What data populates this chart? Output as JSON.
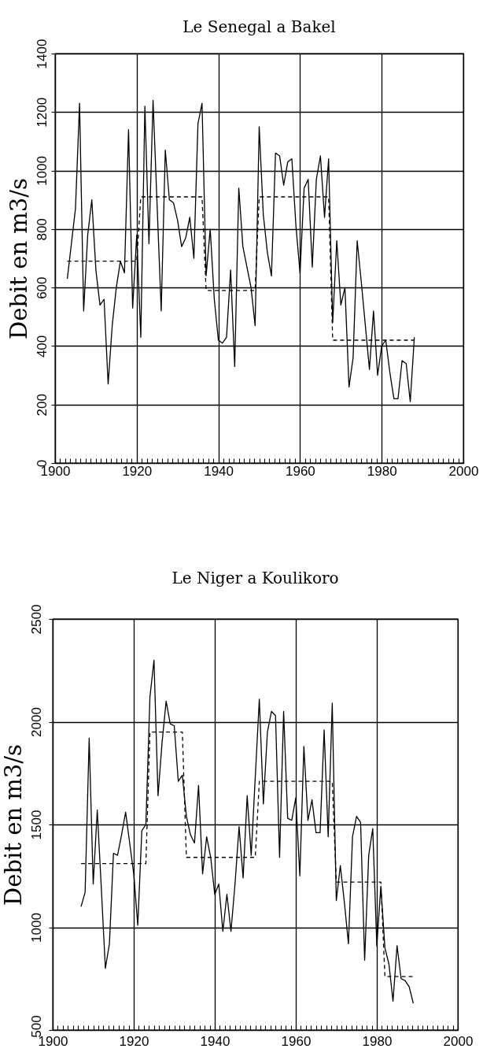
{
  "chart_data": [
    {
      "type": "line",
      "title": "Le Senegal a Bakel",
      "ylabel": "Debit en m3/s",
      "x": [
        1903,
        1904,
        1905,
        1906,
        1907,
        1908,
        1909,
        1910,
        1911,
        1912,
        1913,
        1914,
        1915,
        1916,
        1917,
        1918,
        1919,
        1920,
        1921,
        1922,
        1923,
        1924,
        1925,
        1926,
        1927,
        1928,
        1929,
        1930,
        1931,
        1932,
        1933,
        1934,
        1935,
        1936,
        1937,
        1938,
        1939,
        1940,
        1941,
        1942,
        1943,
        1944,
        1945,
        1946,
        1947,
        1948,
        1949,
        1950,
        1951,
        1952,
        1953,
        1954,
        1955,
        1956,
        1957,
        1958,
        1959,
        1960,
        1961,
        1962,
        1963,
        1964,
        1965,
        1966,
        1967,
        1968,
        1969,
        1970,
        1971,
        1972,
        1973,
        1974,
        1975,
        1976,
        1977,
        1978,
        1979,
        1980,
        1981,
        1982,
        1983,
        1984,
        1985,
        1986,
        1987,
        1988
      ],
      "series": [
        {
          "color": "#000000",
          "values": [
            630,
            750,
            870,
            1230,
            520,
            780,
            900,
            660,
            540,
            560,
            270,
            470,
            600,
            690,
            650,
            1140,
            530,
            780,
            430,
            1220,
            750,
            1240,
            880,
            520,
            1070,
            900,
            890,
            830,
            740,
            770,
            840,
            700,
            1160,
            1230,
            640,
            800,
            560,
            420,
            410,
            430,
            660,
            330,
            940,
            740,
            670,
            600,
            470,
            1150,
            850,
            720,
            640,
            1060,
            1050,
            950,
            1030,
            1040,
            810,
            650,
            940,
            970,
            670,
            970,
            1050,
            840,
            1040,
            480,
            760,
            540,
            600,
            260,
            360,
            760,
            620,
            470,
            320,
            520,
            300,
            400,
            420,
            310,
            220,
            220,
            350,
            340,
            210,
            430
          ]
        },
        {
          "color": "#000000",
          "line_style": "dashed",
          "x": [
            1903,
            1920,
            1921,
            1936,
            1937,
            1949,
            1950,
            1967,
            1968,
            1988
          ],
          "values": [
            690,
            690,
            910,
            910,
            590,
            590,
            910,
            910,
            420,
            420
          ]
        }
      ],
      "xlim": [
        1900,
        2000
      ],
      "ylim": [
        0,
        1400
      ],
      "xticks": [
        1900,
        {
          "value": 1901.25,
          "label": null
        },
        {
          "value": 1902.5,
          "label": null
        },
        {
          "value": 1903.75,
          "label": null
        },
        {
          "value": 1905,
          "label": null
        },
        {
          "value": 1906.25,
          "label": null
        },
        {
          "value": 1907.5,
          "label": null
        },
        {
          "value": 1908.75,
          "label": null
        },
        {
          "value": 1910,
          "label": null
        },
        {
          "value": 1911.25,
          "label": null
        },
        {
          "value": 1912.5,
          "label": null
        },
        {
          "value": 1913.75,
          "label": null
        },
        {
          "value": 1915,
          "label": null
        },
        {
          "value": 1916.25,
          "label": null
        },
        {
          "value": 1917.5,
          "label": null
        },
        {
          "value": 1918.75,
          "label": null
        },
        1920,
        {
          "value": 1921.25,
          "label": null
        },
        {
          "value": 1922.5,
          "label": null
        },
        {
          "value": 1923.75,
          "label": null
        },
        {
          "value": 1925,
          "label": null
        },
        {
          "value": 1926.25,
          "label": null
        },
        {
          "value": 1927.5,
          "label": null
        },
        {
          "value": 1928.75,
          "label": null
        },
        {
          "value": 1930,
          "label": null
        },
        {
          "value": 1931.25,
          "label": null
        },
        {
          "value": 1932.5,
          "label": null
        },
        {
          "value": 1933.75,
          "label": null
        },
        {
          "value": 1935,
          "label": null
        },
        {
          "value": 1936.25,
          "label": null
        },
        {
          "value": 1937.5,
          "label": null
        },
        {
          "value": 1938.75,
          "label": null
        },
        1940,
        {
          "value": 1941.25,
          "label": null
        },
        {
          "value": 1942.5,
          "label": null
        },
        {
          "value": 1943.75,
          "label": null
        },
        {
          "value": 1945,
          "label": null
        },
        {
          "value": 1946.25,
          "label": null
        },
        {
          "value": 1947.5,
          "label": null
        },
        {
          "value": 1948.75,
          "label": null
        },
        {
          "value": 1950,
          "label": null
        },
        {
          "value": 1951.25,
          "label": null
        },
        {
          "value": 1952.5,
          "label": null
        },
        {
          "value": 1953.75,
          "label": null
        },
        {
          "value": 1955,
          "label": null
        },
        {
          "value": 1956.25,
          "label": null
        },
        {
          "value": 1957.5,
          "label": null
        },
        {
          "value": 1958.75,
          "label": null
        },
        1960,
        {
          "value": 1961.25,
          "label": null
        },
        {
          "value": 1962.5,
          "label": null
        },
        {
          "value": 1963.75,
          "label": null
        },
        {
          "value": 1965,
          "label": null
        },
        {
          "value": 1966.25,
          "label": null
        },
        {
          "value": 1967.5,
          "label": null
        },
        {
          "value": 1968.75,
          "label": null
        },
        {
          "value": 1970,
          "label": null
        },
        {
          "value": 1971.25,
          "label": null
        },
        {
          "value": 1972.5,
          "label": null
        },
        {
          "value": 1973.75,
          "label": null
        },
        {
          "value": 1975,
          "label": null
        },
        {
          "value": 1976.25,
          "label": null
        },
        {
          "value": 1977.5,
          "label": null
        },
        {
          "value": 1978.75,
          "label": null
        },
        1980,
        {
          "value": 1981.25,
          "label": null
        },
        {
          "value": 1982.5,
          "label": null
        },
        {
          "value": 1983.75,
          "label": null
        },
        {
          "value": 1985,
          "label": null
        },
        {
          "value": 1986.25,
          "label": null
        },
        {
          "value": 1987.5,
          "label": null
        },
        {
          "value": 1988.75,
          "label": null
        },
        {
          "value": 1990,
          "label": null
        },
        {
          "value": 1991.25,
          "label": null
        },
        {
          "value": 1992.5,
          "label": null
        },
        {
          "value": 1993.75,
          "label": null
        },
        {
          "value": 1995,
          "label": null
        },
        {
          "value": 1996.25,
          "label": null
        },
        {
          "value": 1997.5,
          "label": null
        },
        {
          "value": 1998.75,
          "label": null
        },
        2000
      ],
      "yticks": [
        0,
        200,
        400,
        600,
        800,
        1000,
        1200,
        1400
      ],
      "grid": true
    },
    {
      "type": "line",
      "title": "Le Niger a Koulikoro",
      "ylabel": "Debit en m3/s",
      "x": [
        1907,
        1908,
        1909,
        1910,
        1911,
        1912,
        1913,
        1914,
        1915,
        1916,
        1917,
        1918,
        1919,
        1920,
        1921,
        1922,
        1923,
        1924,
        1925,
        1926,
        1927,
        1928,
        1929,
        1930,
        1931,
        1932,
        1933,
        1934,
        1935,
        1936,
        1937,
        1938,
        1939,
        1940,
        1941,
        1942,
        1943,
        1944,
        1945,
        1946,
        1947,
        1948,
        1949,
        1950,
        1951,
        1952,
        1953,
        1954,
        1955,
        1956,
        1957,
        1958,
        1959,
        1960,
        1961,
        1962,
        1963,
        1964,
        1965,
        1966,
        1967,
        1968,
        1969,
        1970,
        1971,
        1972,
        1973,
        1974,
        1975,
        1976,
        1977,
        1978,
        1979,
        1980,
        1981,
        1982,
        1983,
        1984,
        1985,
        1986,
        1987,
        1988,
        1989
      ],
      "series": [
        {
          "color": "#000000",
          "values": [
            1100,
            1170,
            1920,
            1210,
            1570,
            1190,
            800,
            920,
            1360,
            1350,
            1450,
            1560,
            1410,
            1260,
            1010,
            1470,
            1500,
            2120,
            2300,
            1640,
            1900,
            2100,
            1990,
            1980,
            1710,
            1740,
            1540,
            1450,
            1410,
            1690,
            1260,
            1440,
            1340,
            1160,
            1210,
            980,
            1160,
            980,
            1210,
            1490,
            1240,
            1640,
            1350,
            1730,
            2110,
            1600,
            1950,
            2050,
            2030,
            1340,
            2050,
            1530,
            1520,
            1630,
            1250,
            1880,
            1520,
            1620,
            1460,
            1460,
            1960,
            1440,
            2090,
            1130,
            1300,
            1120,
            920,
            1440,
            1540,
            1510,
            840,
            1350,
            1480,
            910,
            1200,
            900,
            820,
            640,
            910,
            750,
            740,
            710,
            630
          ]
        },
        {
          "color": "#000000",
          "line_style": "dashed",
          "x": [
            1907,
            1923,
            1924,
            1932,
            1933,
            1950,
            1951,
            1969,
            1970,
            1981,
            1982,
            1989
          ],
          "values": [
            1310,
            1310,
            1950,
            1950,
            1340,
            1340,
            1710,
            1710,
            1220,
            1220,
            760,
            760
          ]
        }
      ],
      "xlim": [
        1900,
        2000
      ],
      "ylim": [
        500,
        2500
      ],
      "xticks": [
        1900,
        {
          "value": 1901.25,
          "label": null
        },
        {
          "value": 1902.5,
          "label": null
        },
        {
          "value": 1903.75,
          "label": null
        },
        {
          "value": 1905,
          "label": null
        },
        {
          "value": 1906.25,
          "label": null
        },
        {
          "value": 1907.5,
          "label": null
        },
        {
          "value": 1908.75,
          "label": null
        },
        {
          "value": 1910,
          "label": null
        },
        {
          "value": 1911.25,
          "label": null
        },
        {
          "value": 1912.5,
          "label": null
        },
        {
          "value": 1913.75,
          "label": null
        },
        {
          "value": 1915,
          "label": null
        },
        {
          "value": 1916.25,
          "label": null
        },
        {
          "value": 1917.5,
          "label": null
        },
        {
          "value": 1918.75,
          "label": null
        },
        1920,
        {
          "value": 1921.25,
          "label": null
        },
        {
          "value": 1922.5,
          "label": null
        },
        {
          "value": 1923.75,
          "label": null
        },
        {
          "value": 1925,
          "label": null
        },
        {
          "value": 1926.25,
          "label": null
        },
        {
          "value": 1927.5,
          "label": null
        },
        {
          "value": 1928.75,
          "label": null
        },
        {
          "value": 1930,
          "label": null
        },
        {
          "value": 1931.25,
          "label": null
        },
        {
          "value": 1932.5,
          "label": null
        },
        {
          "value": 1933.75,
          "label": null
        },
        {
          "value": 1935,
          "label": null
        },
        {
          "value": 1936.25,
          "label": null
        },
        {
          "value": 1937.5,
          "label": null
        },
        {
          "value": 1938.75,
          "label": null
        },
        1940,
        {
          "value": 1941.25,
          "label": null
        },
        {
          "value": 1942.5,
          "label": null
        },
        {
          "value": 1943.75,
          "label": null
        },
        {
          "value": 1945,
          "label": null
        },
        {
          "value": 1946.25,
          "label": null
        },
        {
          "value": 1947.5,
          "label": null
        },
        {
          "value": 1948.75,
          "label": null
        },
        {
          "value": 1950,
          "label": null
        },
        {
          "value": 1951.25,
          "label": null
        },
        {
          "value": 1952.5,
          "label": null
        },
        {
          "value": 1953.75,
          "label": null
        },
        {
          "value": 1955,
          "label": null
        },
        {
          "value": 1956.25,
          "label": null
        },
        {
          "value": 1957.5,
          "label": null
        },
        {
          "value": 1958.75,
          "label": null
        },
        1960,
        {
          "value": 1961.25,
          "label": null
        },
        {
          "value": 1962.5,
          "label": null
        },
        {
          "value": 1963.75,
          "label": null
        },
        {
          "value": 1965,
          "label": null
        },
        {
          "value": 1966.25,
          "label": null
        },
        {
          "value": 1967.5,
          "label": null
        },
        {
          "value": 1968.75,
          "label": null
        },
        {
          "value": 1970,
          "label": null
        },
        {
          "value": 1971.25,
          "label": null
        },
        {
          "value": 1972.5,
          "label": null
        },
        {
          "value": 1973.75,
          "label": null
        },
        {
          "value": 1975,
          "label": null
        },
        {
          "value": 1976.25,
          "label": null
        },
        {
          "value": 1977.5,
          "label": null
        },
        {
          "value": 1978.75,
          "label": null
        },
        1980,
        {
          "value": 1981.25,
          "label": null
        },
        {
          "value": 1982.5,
          "label": null
        },
        {
          "value": 1983.75,
          "label": null
        },
        {
          "value": 1985,
          "label": null
        },
        {
          "value": 1986.25,
          "label": null
        },
        {
          "value": 1987.5,
          "label": null
        },
        {
          "value": 1988.75,
          "label": null
        },
        {
          "value": 1990,
          "label": null
        },
        {
          "value": 1991.25,
          "label": null
        },
        {
          "value": 1992.5,
          "label": null
        },
        {
          "value": 1993.75,
          "label": null
        },
        {
          "value": 1995,
          "label": null
        },
        {
          "value": 1996.25,
          "label": null
        },
        {
          "value": 1997.5,
          "label": null
        },
        {
          "value": 1998.75,
          "label": null
        },
        2000
      ],
      "yticks": [
        500,
        1000,
        1500,
        2000,
        2500
      ],
      "grid": true
    }
  ]
}
